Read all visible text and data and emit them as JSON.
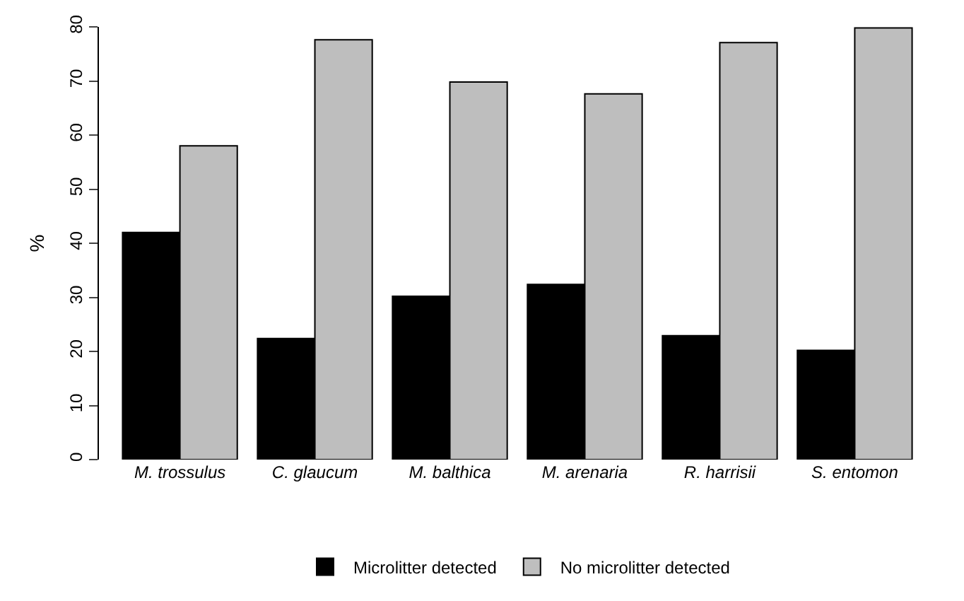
{
  "chart_data": {
    "type": "bar",
    "ylabel": "%",
    "categories": [
      "M. trossulus",
      "C. glaucum",
      "M. balthica",
      "M. arenaria",
      "R. harrisii",
      "S. entomon"
    ],
    "series": [
      {
        "name": "Microlitter detected",
        "color": "#000000",
        "values": [
          42,
          22.4,
          30.2,
          32.4,
          22.9,
          20.2
        ]
      },
      {
        "name": "No microlitter detected",
        "color": "#bebebe",
        "values": [
          58,
          77.6,
          69.8,
          67.6,
          77.1,
          79.8
        ]
      }
    ],
    "ylim": [
      0,
      80
    ],
    "yticks": [
      0,
      10,
      20,
      30,
      40,
      50,
      60,
      70,
      80
    ],
    "legend": "bottom"
  }
}
